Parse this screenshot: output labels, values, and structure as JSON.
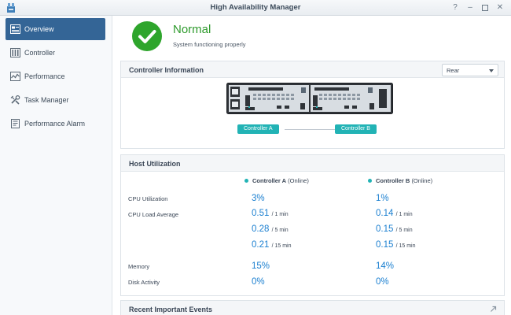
{
  "window": {
    "title": "High Availability Manager",
    "controls": [
      "help-icon",
      "minimize-icon",
      "maximize-icon",
      "close-icon"
    ]
  },
  "sidebar": {
    "items": [
      {
        "label": "Overview",
        "icon": "overview-icon",
        "active": true
      },
      {
        "label": "Controller",
        "icon": "controller-icon",
        "active": false
      },
      {
        "label": "Performance",
        "icon": "performance-icon",
        "active": false
      },
      {
        "label": "Task Manager",
        "icon": "task-manager-icon",
        "active": false
      },
      {
        "label": "Performance Alarm",
        "icon": "performance-alarm-icon",
        "active": false
      }
    ]
  },
  "status": {
    "title": "Normal",
    "subtitle": "System functioning properly",
    "color": "#2ea52c"
  },
  "controller_info": {
    "title": "Controller Information",
    "view_select": "Rear",
    "controller_a": "Controller A",
    "controller_b": "Controller B"
  },
  "host_utilization": {
    "title": "Host Utilization",
    "columns": [
      {
        "name": "Controller A",
        "state": "(Online)"
      },
      {
        "name": "Controller B",
        "state": "(Online)"
      }
    ],
    "rows": {
      "cpu_utilization": {
        "label": "CPU Utilization",
        "a": "3%",
        "b": "1%"
      },
      "cpu_load_average": {
        "label": "CPU Load Average",
        "entries": [
          {
            "a": "0.51",
            "b": "0.14",
            "unit": "/ 1 min"
          },
          {
            "a": "0.28",
            "b": "0.15",
            "unit": "/ 5 min"
          },
          {
            "a": "0.21",
            "b": "0.15",
            "unit": "/ 15 min"
          }
        ]
      },
      "memory": {
        "label": "Memory",
        "a": "15%",
        "b": "14%"
      },
      "disk_activity": {
        "label": "Disk Activity",
        "a": "0%",
        "b": "0%"
      }
    }
  },
  "recent_events": {
    "title": "Recent Important Events"
  },
  "colors": {
    "accent": "#346596",
    "value": "#1a7fd0",
    "online": "#22b3b5",
    "ok": "#2ea52c"
  }
}
